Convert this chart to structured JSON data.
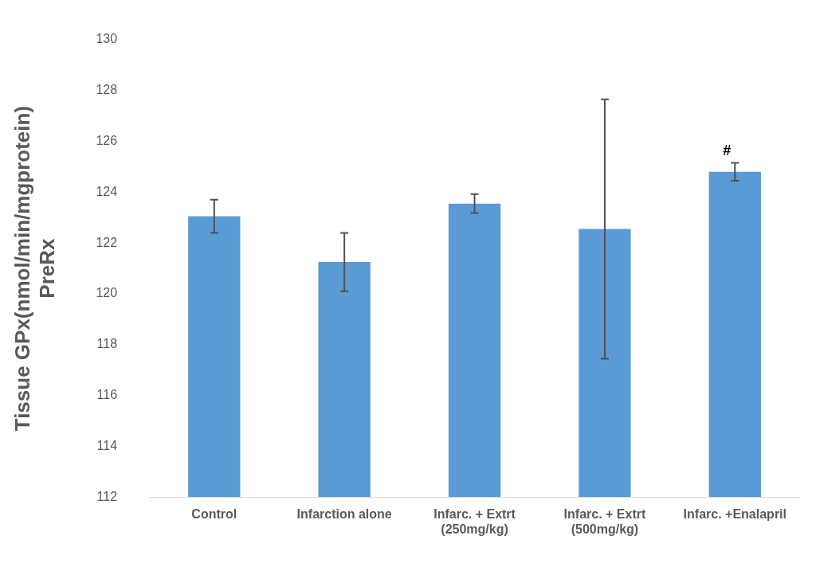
{
  "chart_data": {
    "type": "bar",
    "ylabel": "Tissue GPx(nmol/min/mgprotein)\nPreRx",
    "categories": [
      "Control",
      "Infarction alone",
      "Infarc. + Extrt\n(250mg/kg)",
      "Infarc. + Extrt\n(500mg/kg)",
      "Infarc. +Enalapril"
    ],
    "values": [
      123.05,
      121.25,
      123.55,
      122.55,
      124.8
    ],
    "errors": [
      0.65,
      1.15,
      0.37,
      5.1,
      0.35
    ],
    "color": "#5b9bd5",
    "ylim": [
      112,
      130
    ],
    "yticks": [
      112,
      114,
      116,
      118,
      120,
      122,
      124,
      126,
      128,
      130
    ],
    "grid": false,
    "legend": false,
    "annotations": [
      "#"
    ]
  }
}
